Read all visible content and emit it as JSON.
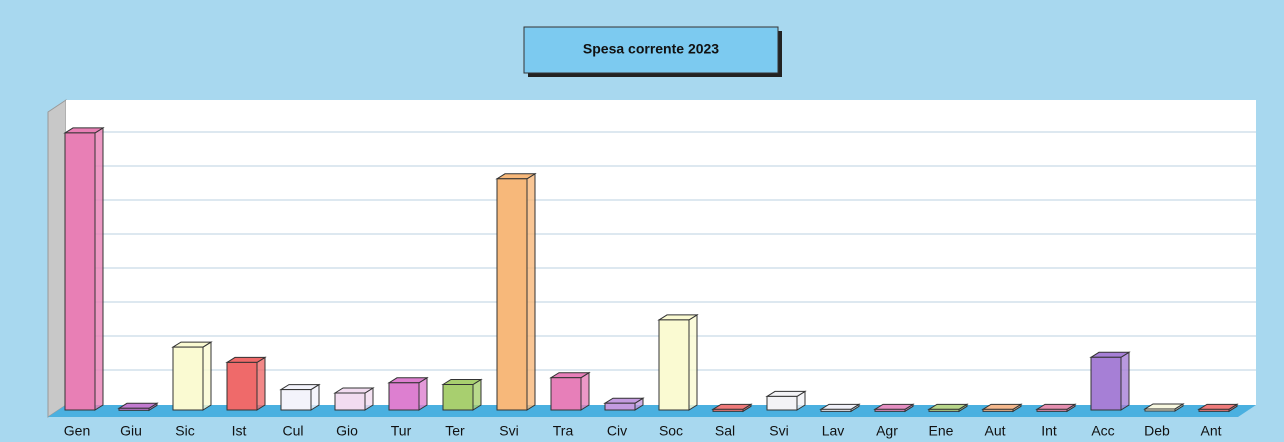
{
  "chart_data": {
    "type": "bar3d",
    "title": "Spesa corrente 2023",
    "categories": [
      "Gen",
      "Giu",
      "Sic",
      "Ist",
      "Cul",
      "Gio",
      "Tur",
      "Ter",
      "Svi",
      "Tra",
      "Civ",
      "Soc",
      "Sal",
      "Svi",
      "Lav",
      "Agr",
      "Ene",
      "Aut",
      "Int",
      "Acc",
      "Deb",
      "Ant"
    ],
    "values": [
      8.15,
      0.05,
      1.85,
      1.4,
      0.6,
      0.5,
      0.8,
      0.75,
      6.8,
      0.95,
      0.2,
      2.65,
      0.02,
      0.4,
      0.02,
      0.02,
      0.02,
      0.02,
      0.02,
      1.55,
      0.03,
      0.02
    ],
    "colors": [
      "#e87fb5",
      "#c27ad0",
      "#fafad2",
      "#ef6a6a",
      "#f3f3fb",
      "#f2dcf0",
      "#dd7fd0",
      "#a8cf6f",
      "#f7b87a",
      "#e77fb9",
      "#c49be0",
      "#fafad2",
      "#ef7a7a",
      "#f3f3f6",
      "#f0f0f8",
      "#e58fc2",
      "#b8d68a",
      "#f5b98e",
      "#e58fb0",
      "#a67fd6",
      "#f8f8e0",
      "#ef7b7b"
    ],
    "ylim": [
      0,
      9
    ],
    "yticks": [
      0,
      1,
      2,
      3,
      4,
      5,
      6,
      7,
      8,
      9
    ],
    "grid": true
  }
}
